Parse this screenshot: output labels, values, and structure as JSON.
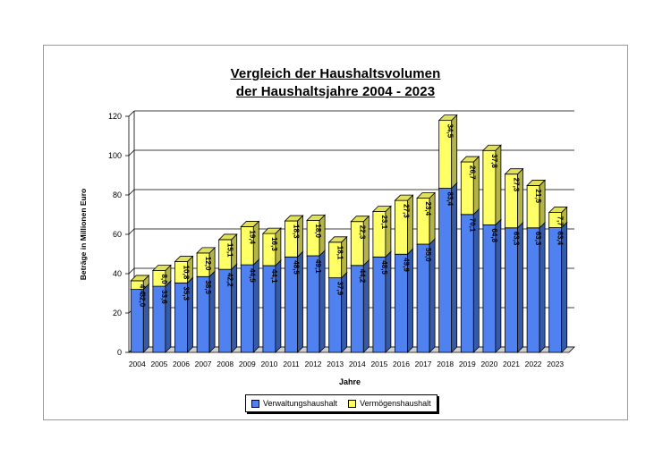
{
  "chart_data": {
    "type": "bar",
    "stacked": true,
    "title_lines": [
      "Vergleich der Haushaltsvolumen",
      "der Haushaltsjahre 2004 - 2023"
    ],
    "xlabel": "Jahre",
    "ylabel": "Beträge in Millionen Euro",
    "ylim": [
      0,
      120
    ],
    "yticks": [
      0,
      20,
      40,
      60,
      80,
      100,
      120
    ],
    "grid": true,
    "legend_position": "bottom",
    "categories": [
      "2004",
      "2005",
      "2006",
      "2007",
      "2008",
      "2009",
      "2010",
      "2011",
      "2012",
      "2013",
      "2014",
      "2015",
      "2016",
      "2017",
      "2018",
      "2019",
      "2020",
      "2021",
      "2022",
      "2023"
    ],
    "series": [
      {
        "name": "Verwaltungshaushalt",
        "color": "#4f81f0",
        "values": [
          32.0,
          33.6,
          35.3,
          38.5,
          42.2,
          44.5,
          44.1,
          48.5,
          49.1,
          37.9,
          44.2,
          48.5,
          49.9,
          55.0,
          83.4,
          70.1,
          64.8,
          63.3,
          63.3,
          63.4
        ],
        "labels": [
          "32,0",
          "33,6",
          "35,3",
          "38,5",
          "42,2",
          "44,5",
          "44,1",
          "48,5",
          "49,1",
          "37,9",
          "44,2",
          "48,5",
          "49,9",
          "55,0",
          "83,4",
          "70,1",
          "64,8",
          "63,3",
          "63,3",
          "63,4"
        ]
      },
      {
        "name": "Vermögenshaushalt",
        "color": "#ffff66",
        "values": [
          4.4,
          8.0,
          10.8,
          12.0,
          15.1,
          19.4,
          16.3,
          18.3,
          18.0,
          18.1,
          22.3,
          23.1,
          27.3,
          23.4,
          34.5,
          26.7,
          37.8,
          27.3,
          21.5,
          7.7
        ],
        "labels": [
          "4,4",
          "8,0",
          "10,8",
          "12,0",
          "15,1",
          "19,4",
          "16,3",
          "18,3",
          "18,0",
          "18,1",
          "22,3",
          "23,1",
          "27,3",
          "23,4",
          "34,5",
          "26,7",
          "37,8",
          "27,3",
          "21,5",
          "7,7"
        ]
      }
    ]
  }
}
